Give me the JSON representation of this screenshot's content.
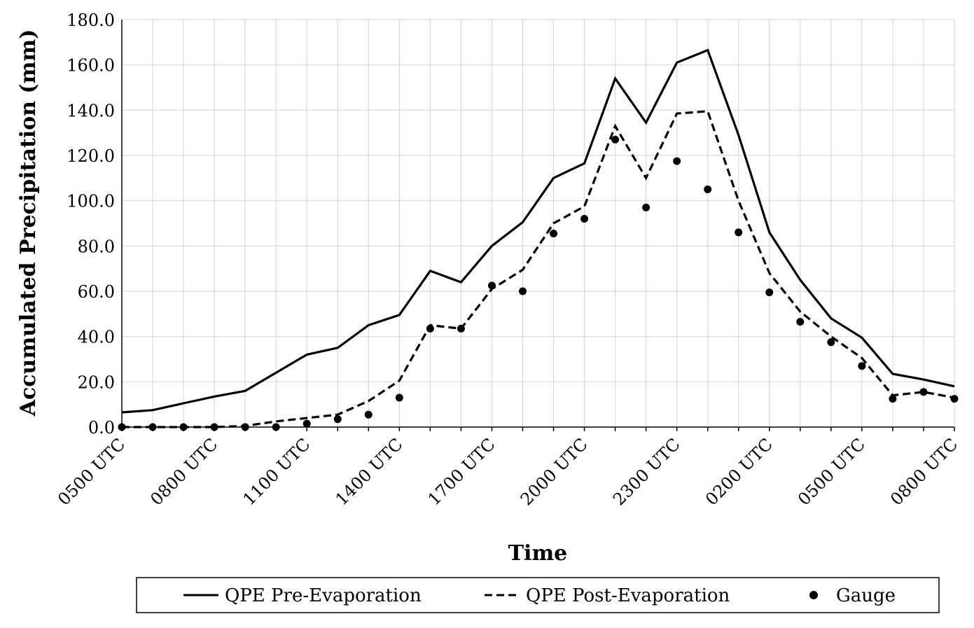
{
  "chart_data": {
    "type": "line",
    "title": "",
    "xlabel": "Time",
    "ylabel": "Accumulated Precipitation (mm)",
    "ylim": [
      0,
      180
    ],
    "y_ticks": [
      "0.0",
      "20.0",
      "40.0",
      "60.0",
      "80.0",
      "100.0",
      "120.0",
      "140.0",
      "160.0",
      "180.0"
    ],
    "x_count": 28,
    "x_tick_labels": [
      {
        "i": 0,
        "label": "0500 UTC"
      },
      {
        "i": 3,
        "label": "0800 UTC"
      },
      {
        "i": 6,
        "label": "1100 UTC"
      },
      {
        "i": 9,
        "label": "1400 UTC"
      },
      {
        "i": 12,
        "label": "1700 UTC"
      },
      {
        "i": 15,
        "label": "2000 UTC"
      },
      {
        "i": 18,
        "label": "2300 UTC"
      },
      {
        "i": 21,
        "label": "0200 UTC"
      },
      {
        "i": 24,
        "label": "0500 UTC"
      },
      {
        "i": 27,
        "label": "0800 UTC"
      }
    ],
    "grid": true,
    "legend_position": "bottom",
    "series": [
      {
        "name": "QPE Pre-Evaporation",
        "style": "solid",
        "values": [
          6.5,
          7.5,
          10.5,
          13.5,
          16.0,
          24.0,
          32.0,
          35.0,
          45.0,
          49.5,
          69.0,
          64.0,
          80.0,
          90.5,
          110.0,
          116.5,
          154.0,
          134.5,
          161.0,
          166.5,
          129.0,
          86.0,
          65.0,
          48.0,
          39.5,
          23.5,
          21.0,
          18.0
        ]
      },
      {
        "name": "QPE Post-Evaporation",
        "style": "dashed",
        "values": [
          0.0,
          0.0,
          0.0,
          0.0,
          0.5,
          2.5,
          4.0,
          5.5,
          11.5,
          20.5,
          45.0,
          43.5,
          61.0,
          69.5,
          90.0,
          97.5,
          133.0,
          110.0,
          138.5,
          139.5,
          100.0,
          68.0,
          51.0,
          40.0,
          30.5,
          14.0,
          15.5,
          13.0
        ]
      },
      {
        "name": "Gauge",
        "style": "marker",
        "values": [
          0.0,
          0.0,
          0.0,
          0.0,
          0.0,
          0.0,
          1.5,
          3.5,
          5.5,
          13.0,
          43.5,
          43.5,
          62.5,
          60.0,
          85.5,
          92.0,
          127.0,
          97.0,
          117.5,
          105.0,
          86.0,
          59.5,
          46.5,
          37.5,
          27.0,
          12.5,
          15.5,
          12.5
        ]
      }
    ]
  },
  "colors": {
    "line": "#000000",
    "grid": "#d9d9d9",
    "background": "#ffffff"
  }
}
